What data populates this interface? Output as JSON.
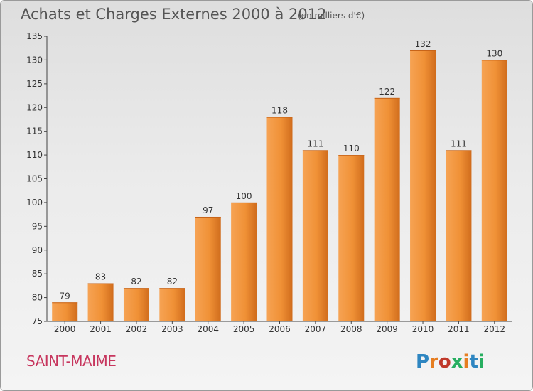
{
  "chart_data": {
    "type": "bar",
    "title": "Achats et Charges Externes 2000 à 2012",
    "subtitle": "(en milliers d'€)",
    "xlabel": "",
    "ylabel": "",
    "categories": [
      "2000",
      "2001",
      "2002",
      "2003",
      "2004",
      "2005",
      "2006",
      "2007",
      "2008",
      "2009",
      "2010",
      "2011",
      "2012"
    ],
    "values": [
      79,
      83,
      82,
      82,
      97,
      100,
      118,
      111,
      110,
      122,
      132,
      111,
      130
    ],
    "data_labels": [
      "79",
      "83",
      "82",
      "82",
      "97",
      "100",
      "118",
      "111",
      "110",
      "122",
      "132",
      "111",
      "130"
    ],
    "ylim": [
      75,
      135
    ],
    "yticks": [
      75,
      80,
      85,
      90,
      95,
      100,
      105,
      110,
      115,
      120,
      125,
      130,
      135
    ],
    "grid": false,
    "legend": "none",
    "bar_color": "#f0923a"
  },
  "footer": {
    "commune": "SAINT-MAIME",
    "logo": "Proxiti"
  },
  "colors": {
    "commune_text": "#c7365e",
    "logo_letters": [
      "#2e86c1",
      "#e67e22",
      "#c0392b",
      "#27ae60",
      "#e67e22",
      "#2e86c1",
      "#27ae60"
    ]
  }
}
